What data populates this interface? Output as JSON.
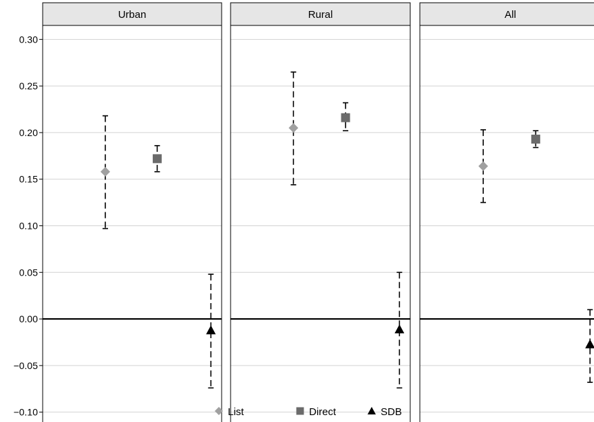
{
  "chart_data": {
    "type": "scatter",
    "facet": "panels",
    "yticks": [
      0.3,
      0.25,
      0.2,
      0.15,
      0.1,
      0.05,
      0.0,
      -0.05,
      -0.1
    ],
    "ytick_labels": [
      "0.30",
      "0.25",
      "0.20",
      "0.15",
      "0.10",
      "0.05",
      "0.00",
      "−0.05",
      "−0.10"
    ],
    "ylim": [
      -0.115,
      0.315
    ],
    "reference_line": 0.0,
    "grid": "horizontal",
    "legend_position": "bottom",
    "series_styles": {
      "List": {
        "marker": "diamond",
        "color": "#a0a0a0"
      },
      "Direct": {
        "marker": "square",
        "color": "#6b6b6b"
      },
      "SDB": {
        "marker": "triangle",
        "color": "#000000"
      }
    },
    "legend": [
      {
        "label": "List",
        "marker": "diamond",
        "color": "#a0a0a0"
      },
      {
        "label": "Direct",
        "marker": "square",
        "color": "#6b6b6b"
      },
      {
        "label": "SDB",
        "marker": "triangle",
        "color": "#000000"
      }
    ],
    "panels": [
      {
        "title": "Urban",
        "points": [
          {
            "series": "List",
            "value": 0.158,
            "lower": 0.097,
            "upper": 0.218
          },
          {
            "series": "Direct",
            "value": 0.172,
            "lower": 0.158,
            "upper": 0.186
          },
          {
            "series": "SDB",
            "value": -0.012,
            "lower": -0.074,
            "upper": 0.048
          }
        ]
      },
      {
        "title": "Rural",
        "points": [
          {
            "series": "List",
            "value": 0.205,
            "lower": 0.144,
            "upper": 0.265
          },
          {
            "series": "Direct",
            "value": 0.216,
            "lower": 0.202,
            "upper": 0.232
          },
          {
            "series": "SDB",
            "value": -0.011,
            "lower": -0.074,
            "upper": 0.05
          }
        ]
      },
      {
        "title": "All",
        "points": [
          {
            "series": "List",
            "value": 0.164,
            "lower": 0.125,
            "upper": 0.203
          },
          {
            "series": "Direct",
            "value": 0.193,
            "lower": 0.184,
            "upper": 0.202
          },
          {
            "series": "SDB",
            "value": -0.027,
            "lower": -0.068,
            "upper": 0.01
          }
        ]
      }
    ]
  }
}
